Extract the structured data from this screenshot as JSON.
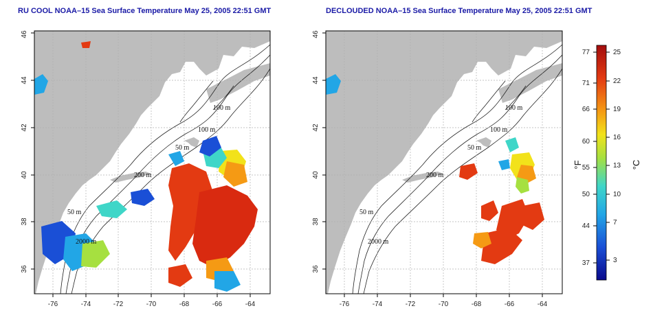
{
  "panels": [
    {
      "id": "left",
      "title": "RU COOL NOAA–15 Sea Surface Temperature May 25, 2005 22:51 GMT",
      "x_ticks": [
        "-76",
        "-74",
        "-72",
        "-70",
        "-68",
        "-66",
        "-64"
      ],
      "y_ticks": [
        "36",
        "38",
        "40",
        "42",
        "44",
        "46"
      ],
      "contour_labels": [
        "100 m",
        "100 m",
        "50 m",
        "200 m",
        "50 m",
        "2000 m"
      ]
    },
    {
      "id": "right",
      "title": "DECLOUDED NOAA–15 Sea Surface Temperature May 25, 2005 22:51 GMT",
      "x_ticks": [
        "-76",
        "-74",
        "-72",
        "-70",
        "-68",
        "-66",
        "-64"
      ],
      "y_ticks": [
        "36",
        "38",
        "40",
        "42",
        "44",
        "46"
      ],
      "contour_labels": [
        "100 m",
        "100 m",
        "50 m",
        "200 m",
        "50 m",
        "2000 m"
      ]
    }
  ],
  "colorbar": {
    "fahrenheit_ticks": [
      "77",
      "71",
      "66",
      "60",
      "55",
      "50",
      "44",
      "37"
    ],
    "celsius_ticks": [
      "25",
      "22",
      "19",
      "16",
      "13",
      "10",
      "7",
      "3"
    ],
    "fahrenheit_unit": "°F",
    "celsius_unit": "°C",
    "colors": [
      "#0a0a8c",
      "#1a4fd6",
      "#22a6e6",
      "#3fd6c8",
      "#a6e040",
      "#f2e21a",
      "#f59a14",
      "#e33a12",
      "#a30d0d"
    ]
  },
  "map_style": {
    "land_color": "#bdbdbd",
    "ocean_color": "#ffffff",
    "grid_color": "#b0b0b0"
  }
}
